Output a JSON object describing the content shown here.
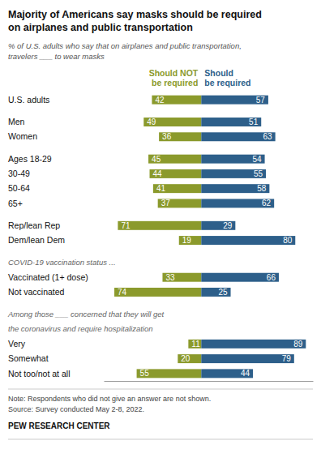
{
  "chart_data": {
    "type": "bar",
    "orientation": "horizontal",
    "title": "Majority of Americans say masks should be required\non airplanes and public transportation",
    "subtitle": "% of U.S. adults who say that on airplanes and public transportation,\ntravelers ___ to wear masks",
    "categories": [
      "U.S. adults",
      "Men",
      "Women",
      "Ages 18-29",
      "30-49",
      "50-64",
      "65+",
      "Rep/lean Rep",
      "Dem/lean Dem",
      "Vaccinated (1+ dose)",
      "Not vaccinated",
      "Very",
      "Somewhat",
      "Not too/not at all"
    ],
    "series": [
      {
        "name": "Should NOT\nbe required",
        "color": "#8b9a2c",
        "values": [
          42,
          49,
          36,
          45,
          44,
          41,
          37,
          71,
          19,
          33,
          74,
          11,
          20,
          55
        ]
      },
      {
        "name": "Should\nbe required",
        "color": "#2d5f8a",
        "values": [
          57,
          51,
          63,
          54,
          55,
          58,
          62,
          29,
          80,
          66,
          25,
          89,
          79,
          44
        ]
      }
    ],
    "xlim": [
      -83,
      95
    ],
    "tick_labels": false,
    "data_labels": true,
    "annotations": [
      "COVID-19 vaccination status ...",
      "Among those ___ concerned that they will get",
      "the coronavirus and require hospitalization"
    ],
    "notes": [
      "Note: Respondents who did not give an answer are not shown.",
      "Source: Survey conducted May 2-8, 2022."
    ],
    "source": "PEW RESEARCH CENTER"
  }
}
